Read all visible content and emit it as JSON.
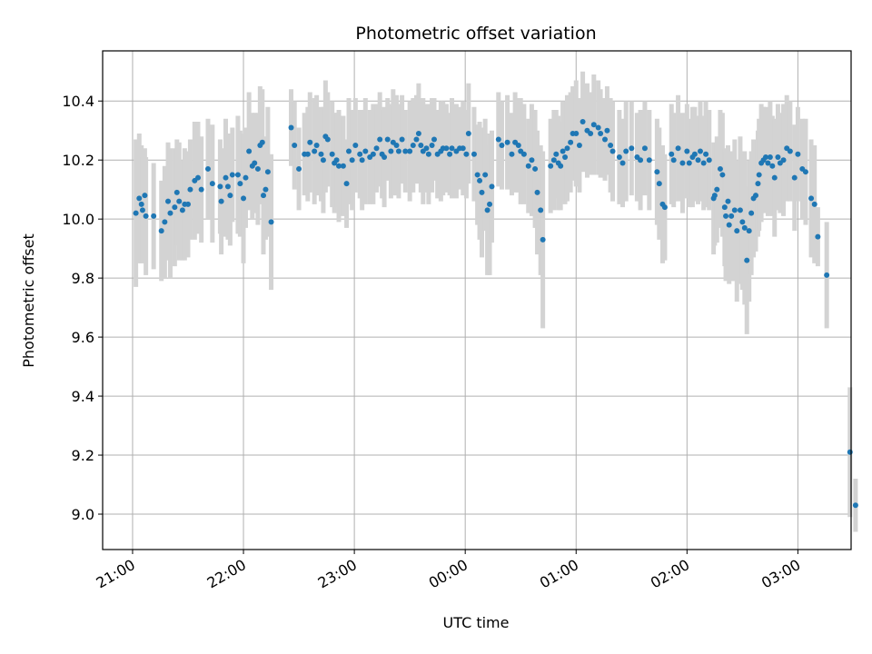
{
  "chart_data": {
    "type": "scatter",
    "title": "Photometric offset variation",
    "xlabel": "UTC time",
    "ylabel": "Photometric offset",
    "x_tick_labels": [
      "21:00",
      "22:00",
      "23:00",
      "00:00",
      "01:00",
      "02:00",
      "03:00"
    ],
    "x_tick_hours": [
      0,
      1,
      2,
      3,
      4,
      5,
      6
    ],
    "y_tick_labels": [
      "9.0",
      "9.2",
      "9.4",
      "9.6",
      "9.8",
      "10.0",
      "10.2",
      "10.4"
    ],
    "y_tick_values": [
      9.0,
      9.2,
      9.4,
      9.6,
      9.8,
      10.0,
      10.2,
      10.4
    ],
    "xlim_hours_since_first_tick": [
      -0.27,
      6.48
    ],
    "ylim": [
      8.88,
      10.57
    ],
    "grid": true,
    "colors": {
      "points": "#1f77b4",
      "error_bars": "#d3d3d3",
      "grid": "#b0b0b0"
    },
    "series": [
      {
        "values": [
          [
            0.03,
            10.02,
            0.25
          ],
          [
            0.06,
            10.07,
            0.22
          ],
          [
            0.08,
            10.05,
            0.2
          ],
          [
            0.09,
            10.03,
            0.18
          ],
          [
            0.11,
            10.08,
            0.16
          ],
          [
            0.12,
            10.01,
            0.2
          ],
          [
            0.19,
            10.01,
            0.18
          ],
          [
            0.26,
            9.96,
            0.17
          ],
          [
            0.29,
            9.99,
            0.19
          ],
          [
            0.32,
            10.06,
            0.2
          ],
          [
            0.34,
            10.02,
            0.22
          ],
          [
            0.38,
            10.04,
            0.2
          ],
          [
            0.4,
            10.09,
            0.18
          ],
          [
            0.42,
            10.06,
            0.2
          ],
          [
            0.45,
            10.03,
            0.17
          ],
          [
            0.47,
            10.05,
            0.19
          ],
          [
            0.5,
            10.05,
            0.18
          ],
          [
            0.52,
            10.1,
            0.17
          ],
          [
            0.56,
            10.13,
            0.2
          ],
          [
            0.59,
            10.14,
            0.19
          ],
          [
            0.62,
            10.1,
            0.18
          ],
          [
            0.68,
            10.17,
            0.17
          ],
          [
            0.72,
            10.12,
            0.2
          ],
          [
            0.79,
            10.11,
            0.16
          ],
          [
            0.8,
            10.06,
            0.18
          ],
          [
            0.84,
            10.14,
            0.2
          ],
          [
            0.86,
            10.11,
            0.18
          ],
          [
            0.88,
            10.08,
            0.17
          ],
          [
            0.9,
            10.15,
            0.16
          ],
          [
            0.95,
            10.15,
            0.2
          ],
          [
            0.97,
            10.12,
            0.18
          ],
          [
            1.0,
            10.07,
            0.22
          ],
          [
            1.02,
            10.14,
            0.17
          ],
          [
            1.05,
            10.23,
            0.2
          ],
          [
            1.08,
            10.18,
            0.18
          ],
          [
            1.1,
            10.19,
            0.17
          ],
          [
            1.13,
            10.17,
            0.19
          ],
          [
            1.15,
            10.25,
            0.2
          ],
          [
            1.17,
            10.26,
            0.18
          ],
          [
            1.18,
            10.08,
            0.2
          ],
          [
            1.2,
            10.1,
            0.17
          ],
          [
            1.22,
            10.16,
            0.22
          ],
          [
            1.25,
            9.99,
            0.23
          ],
          [
            1.43,
            10.31,
            0.13
          ],
          [
            1.46,
            10.25,
            0.15
          ],
          [
            1.5,
            10.17,
            0.14
          ],
          [
            1.55,
            10.22,
            0.14
          ],
          [
            1.58,
            10.22,
            0.16
          ],
          [
            1.6,
            10.26,
            0.17
          ],
          [
            1.64,
            10.23,
            0.18
          ],
          [
            1.66,
            10.25,
            0.17
          ],
          [
            1.7,
            10.22,
            0.16
          ],
          [
            1.72,
            10.2,
            0.18
          ],
          [
            1.74,
            10.28,
            0.19
          ],
          [
            1.76,
            10.27,
            0.16
          ],
          [
            1.8,
            10.22,
            0.18
          ],
          [
            1.82,
            10.19,
            0.17
          ],
          [
            1.84,
            10.2,
            0.16
          ],
          [
            1.86,
            10.18,
            0.19
          ],
          [
            1.9,
            10.18,
            0.17
          ],
          [
            1.93,
            10.12,
            0.15
          ],
          [
            1.95,
            10.23,
            0.18
          ],
          [
            1.98,
            10.2,
            0.17
          ],
          [
            2.01,
            10.25,
            0.16
          ],
          [
            2.05,
            10.22,
            0.15
          ],
          [
            2.07,
            10.2,
            0.17
          ],
          [
            2.1,
            10.23,
            0.18
          ],
          [
            2.14,
            10.21,
            0.16
          ],
          [
            2.17,
            10.22,
            0.17
          ],
          [
            2.2,
            10.24,
            0.15
          ],
          [
            2.23,
            10.27,
            0.16
          ],
          [
            2.25,
            10.22,
            0.15
          ],
          [
            2.27,
            10.21,
            0.17
          ],
          [
            2.3,
            10.27,
            0.14
          ],
          [
            2.33,
            10.23,
            0.16
          ],
          [
            2.35,
            10.26,
            0.18
          ],
          [
            2.38,
            10.25,
            0.17
          ],
          [
            2.4,
            10.23,
            0.16
          ],
          [
            2.43,
            10.27,
            0.15
          ],
          [
            2.46,
            10.23,
            0.14
          ],
          [
            2.5,
            10.23,
            0.17
          ],
          [
            2.53,
            10.25,
            0.16
          ],
          [
            2.56,
            10.27,
            0.15
          ],
          [
            2.58,
            10.29,
            0.17
          ],
          [
            2.6,
            10.25,
            0.16
          ],
          [
            2.62,
            10.23,
            0.18
          ],
          [
            2.65,
            10.24,
            0.15
          ],
          [
            2.67,
            10.22,
            0.17
          ],
          [
            2.7,
            10.25,
            0.16
          ],
          [
            2.72,
            10.27,
            0.14
          ],
          [
            2.75,
            10.22,
            0.15
          ],
          [
            2.78,
            10.23,
            0.17
          ],
          [
            2.8,
            10.24,
            0.16
          ],
          [
            2.83,
            10.24,
            0.15
          ],
          [
            2.86,
            10.22,
            0.14
          ],
          [
            2.88,
            10.24,
            0.17
          ],
          [
            2.92,
            10.23,
            0.16
          ],
          [
            2.95,
            10.24,
            0.14
          ],
          [
            2.98,
            10.24,
            0.16
          ],
          [
            3.01,
            10.22,
            0.15
          ],
          [
            3.03,
            10.29,
            0.17
          ],
          [
            3.08,
            10.22,
            0.16
          ],
          [
            3.11,
            10.15,
            0.17
          ],
          [
            3.13,
            10.13,
            0.2
          ],
          [
            3.15,
            10.09,
            0.22
          ],
          [
            3.18,
            10.15,
            0.19
          ],
          [
            3.2,
            10.03,
            0.22
          ],
          [
            3.22,
            10.05,
            0.24
          ],
          [
            3.24,
            10.11,
            0.19
          ],
          [
            3.3,
            10.27,
            0.16
          ],
          [
            3.33,
            10.25,
            0.15
          ],
          [
            3.38,
            10.26,
            0.16
          ],
          [
            3.42,
            10.22,
            0.14
          ],
          [
            3.45,
            10.26,
            0.17
          ],
          [
            3.48,
            10.25,
            0.16
          ],
          [
            3.5,
            10.23,
            0.18
          ],
          [
            3.53,
            10.22,
            0.17
          ],
          [
            3.57,
            10.18,
            0.16
          ],
          [
            3.6,
            10.2,
            0.19
          ],
          [
            3.63,
            10.17,
            0.2
          ],
          [
            3.65,
            10.09,
            0.21
          ],
          [
            3.68,
            10.03,
            0.22
          ],
          [
            3.7,
            9.93,
            0.3
          ],
          [
            3.77,
            10.18,
            0.16
          ],
          [
            3.8,
            10.2,
            0.17
          ],
          [
            3.82,
            10.22,
            0.15
          ],
          [
            3.84,
            10.19,
            0.16
          ],
          [
            3.86,
            10.18,
            0.15
          ],
          [
            3.88,
            10.23,
            0.17
          ],
          [
            3.9,
            10.21,
            0.16
          ],
          [
            3.92,
            10.24,
            0.18
          ],
          [
            3.95,
            10.26,
            0.17
          ],
          [
            3.97,
            10.29,
            0.16
          ],
          [
            4.0,
            10.29,
            0.18
          ],
          [
            4.03,
            10.25,
            0.16
          ],
          [
            4.06,
            10.33,
            0.17
          ],
          [
            4.1,
            10.3,
            0.16
          ],
          [
            4.13,
            10.29,
            0.14
          ],
          [
            4.16,
            10.32,
            0.17
          ],
          [
            4.2,
            10.31,
            0.16
          ],
          [
            4.22,
            10.29,
            0.15
          ],
          [
            4.26,
            10.27,
            0.14
          ],
          [
            4.28,
            10.3,
            0.15
          ],
          [
            4.31,
            10.25,
            0.16
          ],
          [
            4.33,
            10.23,
            0.17
          ],
          [
            4.39,
            10.21,
            0.16
          ],
          [
            4.42,
            10.19,
            0.15
          ],
          [
            4.45,
            10.23,
            0.17
          ],
          [
            4.5,
            10.24,
            0.16
          ],
          [
            4.55,
            10.21,
            0.15
          ],
          [
            4.58,
            10.2,
            0.17
          ],
          [
            4.62,
            10.24,
            0.16
          ],
          [
            4.66,
            10.2,
            0.17
          ],
          [
            4.73,
            10.16,
            0.18
          ],
          [
            4.75,
            10.12,
            0.19
          ],
          [
            4.78,
            10.05,
            0.2
          ],
          [
            4.8,
            10.04,
            0.18
          ],
          [
            4.86,
            10.22,
            0.17
          ],
          [
            4.88,
            10.2,
            0.16
          ],
          [
            4.92,
            10.24,
            0.18
          ],
          [
            4.96,
            10.19,
            0.17
          ],
          [
            5.0,
            10.23,
            0.16
          ],
          [
            5.02,
            10.19,
            0.15
          ],
          [
            5.05,
            10.21,
            0.17
          ],
          [
            5.07,
            10.22,
            0.16
          ],
          [
            5.1,
            10.2,
            0.15
          ],
          [
            5.12,
            10.23,
            0.17
          ],
          [
            5.15,
            10.19,
            0.16
          ],
          [
            5.17,
            10.22,
            0.18
          ],
          [
            5.2,
            10.2,
            0.17
          ],
          [
            5.24,
            10.07,
            0.19
          ],
          [
            5.25,
            10.08,
            0.17
          ],
          [
            5.27,
            10.1,
            0.18
          ],
          [
            5.3,
            10.17,
            0.2
          ],
          [
            5.32,
            10.15,
            0.21
          ],
          [
            5.34,
            10.04,
            0.2
          ],
          [
            5.35,
            10.01,
            0.22
          ],
          [
            5.37,
            10.06,
            0.19
          ],
          [
            5.38,
            9.98,
            0.2
          ],
          [
            5.4,
            10.01,
            0.22
          ],
          [
            5.43,
            10.03,
            0.24
          ],
          [
            5.45,
            9.96,
            0.24
          ],
          [
            5.48,
            10.03,
            0.25
          ],
          [
            5.5,
            9.99,
            0.23
          ],
          [
            5.52,
            9.97,
            0.26
          ],
          [
            5.54,
            9.86,
            0.25
          ],
          [
            5.56,
            9.96,
            0.24
          ],
          [
            5.58,
            10.02,
            0.21
          ],
          [
            5.6,
            10.07,
            0.2
          ],
          [
            5.62,
            10.08,
            0.19
          ],
          [
            5.64,
            10.12,
            0.18
          ],
          [
            5.65,
            10.15,
            0.19
          ],
          [
            5.67,
            10.19,
            0.2
          ],
          [
            5.69,
            10.2,
            0.18
          ],
          [
            5.71,
            10.21,
            0.17
          ],
          [
            5.73,
            10.19,
            0.18
          ],
          [
            5.75,
            10.21,
            0.19
          ],
          [
            5.77,
            10.18,
            0.17
          ],
          [
            5.79,
            10.14,
            0.2
          ],
          [
            5.82,
            10.21,
            0.18
          ],
          [
            5.84,
            10.19,
            0.17
          ],
          [
            5.87,
            10.2,
            0.19
          ],
          [
            5.9,
            10.24,
            0.18
          ],
          [
            5.93,
            10.23,
            0.17
          ],
          [
            5.97,
            10.14,
            0.18
          ],
          [
            6.0,
            10.22,
            0.16
          ],
          [
            6.04,
            10.17,
            0.17
          ],
          [
            6.07,
            10.16,
            0.18
          ],
          [
            6.12,
            10.07,
            0.2
          ],
          [
            6.15,
            10.05,
            0.2
          ],
          [
            6.18,
            9.94,
            0.1
          ],
          [
            6.26,
            9.81,
            0.18
          ],
          [
            6.47,
            9.21,
            0.22
          ],
          [
            6.52,
            9.03,
            0.09
          ]
        ]
      }
    ]
  }
}
